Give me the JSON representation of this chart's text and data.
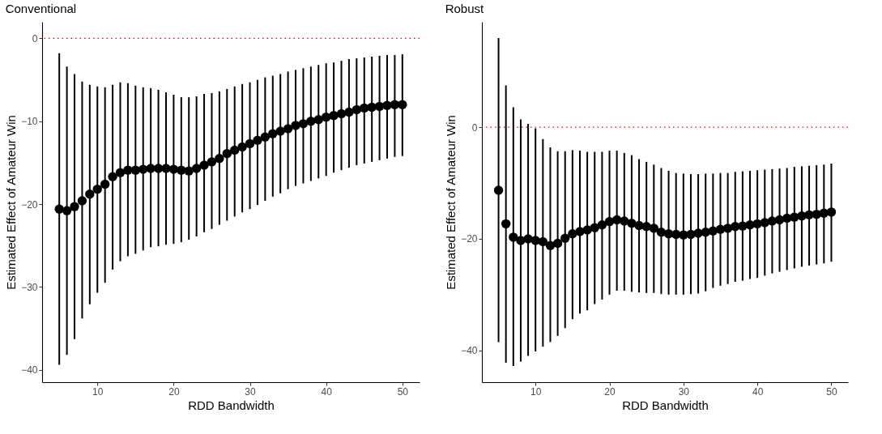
{
  "chart_data": [
    {
      "type": "scatter",
      "title": "Conventional",
      "xlabel": "RDD Bandwidth",
      "ylabel": "Estimated Effect of Amateur Win",
      "marker": "circle",
      "x": [
        5,
        6,
        7,
        8,
        9,
        10,
        11,
        12,
        13,
        14,
        15,
        16,
        17,
        18,
        19,
        20,
        21,
        22,
        23,
        24,
        25,
        26,
        27,
        28,
        29,
        30,
        31,
        32,
        33,
        34,
        35,
        36,
        37,
        38,
        39,
        40,
        41,
        42,
        43,
        44,
        45,
        46,
        47,
        48,
        49,
        50
      ],
      "xlim": [
        2.75,
        52.25
      ],
      "xticks": [
        10,
        20,
        30,
        40,
        50
      ],
      "ylim": [
        -41.5,
        2
      ],
      "yticks": [
        {
          "value": -40,
          "label": "−40"
        },
        {
          "value": -30,
          "label": "−30"
        },
        {
          "value": -20,
          "label": "−20"
        },
        {
          "value": -10,
          "label": "−10"
        },
        0
      ],
      "ref_lines": [
        {
          "axis": "y",
          "value": 0,
          "color": "#ff0000",
          "line_style": "dotted"
        }
      ],
      "series": [
        {
          "color": "#000000",
          "values": [
            -20.6,
            -20.8,
            -20.3,
            -19.6,
            -18.8,
            -18.2,
            -17.6,
            -16.7,
            -16.2,
            -15.9,
            -15.9,
            -15.8,
            -15.7,
            -15.7,
            -15.7,
            -15.8,
            -15.9,
            -16.0,
            -15.7,
            -15.3,
            -14.9,
            -14.5,
            -13.9,
            -13.5,
            -13.1,
            -12.7,
            -12.3,
            -11.9,
            -11.5,
            -11.2,
            -10.9,
            -10.5,
            -10.3,
            -10.0,
            -9.8,
            -9.5,
            -9.3,
            -9.1,
            -8.9,
            -8.6,
            -8.4,
            -8.3,
            -8.2,
            -8.1,
            -8.0,
            -8.0
          ],
          "errors": [
            [
              -39.4,
              -1.8
            ],
            [
              -38.2,
              -3.4
            ],
            [
              -36.3,
              -4.3
            ],
            [
              -33.8,
              -5.2
            ],
            [
              -32.1,
              -5.6
            ],
            [
              -30.7,
              -5.8
            ],
            [
              -29.5,
              -5.9
            ],
            [
              -27.9,
              -5.6
            ],
            [
              -26.9,
              -5.3
            ],
            [
              -26.3,
              -5.4
            ],
            [
              -26.0,
              -5.7
            ],
            [
              -25.6,
              -5.9
            ],
            [
              -25.2,
              -6.0
            ],
            [
              -25.1,
              -6.2
            ],
            [
              -24.9,
              -6.5
            ],
            [
              -24.8,
              -6.8
            ],
            [
              -24.6,
              -7.1
            ],
            [
              -24.3,
              -7.1
            ],
            [
              -23.9,
              -7.0
            ],
            [
              -23.4,
              -6.7
            ],
            [
              -23.0,
              -6.6
            ],
            [
              -22.5,
              -6.4
            ],
            [
              -22.0,
              -6.1
            ],
            [
              -21.5,
              -5.8
            ],
            [
              -21.0,
              -5.5
            ],
            [
              -20.6,
              -5.3
            ],
            [
              -20.1,
              -5.0
            ],
            [
              -19.6,
              -4.7
            ],
            [
              -19.1,
              -4.5
            ],
            [
              -18.7,
              -4.3
            ],
            [
              -18.2,
              -4.0
            ],
            [
              -17.8,
              -3.8
            ],
            [
              -17.5,
              -3.6
            ],
            [
              -17.2,
              -3.4
            ],
            [
              -16.9,
              -3.2
            ],
            [
              -16.6,
              -3.0
            ],
            [
              -16.2,
              -2.9
            ],
            [
              -15.9,
              -2.7
            ],
            [
              -15.6,
              -2.5
            ],
            [
              -15.3,
              -2.4
            ],
            [
              -15.1,
              -2.3
            ],
            [
              -14.9,
              -2.2
            ],
            [
              -14.7,
              -2.1
            ],
            [
              -14.5,
              -2.0
            ],
            [
              -14.3,
              -2.0
            ],
            [
              -14.2,
              -1.9
            ]
          ]
        }
      ]
    },
    {
      "type": "scatter",
      "title": "Robust",
      "xlabel": "RDD Bandwidth",
      "ylabel": "Estimated Effect of Amateur Win",
      "marker": "circle",
      "x": [
        5,
        6,
        7,
        8,
        9,
        10,
        11,
        12,
        13,
        14,
        15,
        16,
        17,
        18,
        19,
        20,
        21,
        22,
        23,
        24,
        25,
        26,
        27,
        28,
        29,
        30,
        31,
        32,
        33,
        34,
        35,
        36,
        37,
        38,
        39,
        40,
        41,
        42,
        43,
        44,
        45,
        46,
        47,
        48,
        49,
        50
      ],
      "xlim": [
        2.75,
        52.25
      ],
      "xticks": [
        10,
        20,
        30,
        40,
        50
      ],
      "ylim": [
        -45.7,
        18.9
      ],
      "yticks": [
        {
          "value": -40,
          "label": "−40"
        },
        {
          "value": -20,
          "label": "−20"
        },
        0
      ],
      "ref_lines": [
        {
          "axis": "y",
          "value": 0,
          "color": "#ff0000",
          "line_style": "dotted"
        }
      ],
      "series": [
        {
          "color": "#000000",
          "values": [
            -11.3,
            -17.3,
            -19.7,
            -20.3,
            -20.0,
            -20.3,
            -20.5,
            -21.2,
            -20.8,
            -19.9,
            -19.1,
            -18.7,
            -18.4,
            -18.0,
            -17.5,
            -16.9,
            -16.6,
            -16.8,
            -17.2,
            -17.6,
            -17.8,
            -18.1,
            -18.8,
            -19.1,
            -19.2,
            -19.3,
            -19.2,
            -19.0,
            -18.8,
            -18.6,
            -18.3,
            -18.1,
            -17.8,
            -17.7,
            -17.5,
            -17.3,
            -17.1,
            -16.8,
            -16.6,
            -16.3,
            -16.1,
            -15.9,
            -15.7,
            -15.6,
            -15.4,
            -15.2
          ],
          "errors": [
            [
              -38.5,
              16.0
            ],
            [
              -42.2,
              7.5
            ],
            [
              -42.8,
              3.6
            ],
            [
              -42.0,
              1.4
            ],
            [
              -41.0,
              0.6
            ],
            [
              -40.2,
              -0.2
            ],
            [
              -39.3,
              -2.1
            ],
            [
              -38.5,
              -3.6
            ],
            [
              -37.4,
              -4.3
            ],
            [
              -36.0,
              -4.3
            ],
            [
              -34.4,
              -4.1
            ],
            [
              -33.4,
              -4.2
            ],
            [
              -32.8,
              -4.4
            ],
            [
              -31.7,
              -4.4
            ],
            [
              -30.9,
              -4.4
            ],
            [
              -30.0,
              -4.2
            ],
            [
              -29.3,
              -4.2
            ],
            [
              -29.3,
              -4.6
            ],
            [
              -29.5,
              -5.0
            ],
            [
              -29.6,
              -5.7
            ],
            [
              -29.7,
              -6.2
            ],
            [
              -29.7,
              -6.7
            ],
            [
              -29.9,
              -7.3
            ],
            [
              -30.0,
              -7.8
            ],
            [
              -30.0,
              -8.2
            ],
            [
              -30.0,
              -8.3
            ],
            [
              -29.9,
              -8.4
            ],
            [
              -29.8,
              -8.4
            ],
            [
              -29.4,
              -8.3
            ],
            [
              -28.8,
              -8.3
            ],
            [
              -28.4,
              -8.2
            ],
            [
              -28.1,
              -8.2
            ],
            [
              -27.7,
              -8.0
            ],
            [
              -27.5,
              -7.9
            ],
            [
              -27.2,
              -7.8
            ],
            [
              -27.0,
              -7.7
            ],
            [
              -26.6,
              -7.6
            ],
            [
              -26.2,
              -7.5
            ],
            [
              -25.9,
              -7.4
            ],
            [
              -25.6,
              -7.3
            ],
            [
              -25.3,
              -7.1
            ],
            [
              -25.0,
              -7.0
            ],
            [
              -24.8,
              -6.9
            ],
            [
              -24.6,
              -6.8
            ],
            [
              -24.4,
              -6.7
            ],
            [
              -24.1,
              -6.5
            ]
          ]
        }
      ]
    }
  ]
}
